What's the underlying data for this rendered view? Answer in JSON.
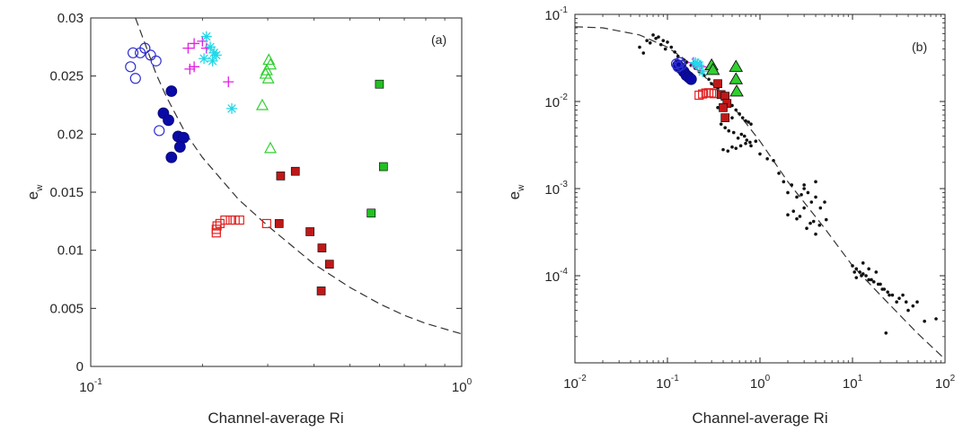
{
  "chart_data": [
    {
      "type": "scatter",
      "panel_label": "(a)",
      "xlabel": "Channel-average Ri",
      "ylabel": "e",
      "ylabel_sub": "w",
      "xscale": "log",
      "xlim": [
        0.1,
        1
      ],
      "ylim": [
        0,
        0.03
      ],
      "x_ticks": [
        {
          "base": "10",
          "exp": "-1"
        },
        {
          "base": "10",
          "exp": "0"
        }
      ],
      "y_ticks": [
        "0",
        "0.005",
        "0.01",
        "0.015",
        "0.02",
        "0.025",
        "0.03"
      ],
      "grid": false,
      "series": [
        {
          "marker": "circle-open",
          "color": "#2f2fd0",
          "x": [
            0.128,
            0.132,
            0.136,
            0.14,
            0.145,
            0.15,
            0.13
          ],
          "y": [
            0.0258,
            0.0248,
            0.027,
            0.0274,
            0.0268,
            0.0263,
            0.027
          ]
        },
        {
          "marker": "circle-open",
          "color": "#2f2fd0",
          "x": [
            0.153
          ],
          "y": [
            0.0203
          ]
        },
        {
          "marker": "circle-filled",
          "color": "#0a0aa8",
          "x": [
            0.165,
            0.157,
            0.162,
            0.172,
            0.178,
            0.174,
            0.165
          ],
          "y": [
            0.0237,
            0.0218,
            0.0212,
            0.0198,
            0.0197,
            0.0189,
            0.018
          ]
        },
        {
          "marker": "plus",
          "color": "#e020e0",
          "x": [
            0.183,
            0.19,
            0.2,
            0.205,
            0.185,
            0.19,
            0.235
          ],
          "y": [
            0.0274,
            0.0278,
            0.028,
            0.0274,
            0.0256,
            0.0258,
            0.0245
          ]
        },
        {
          "marker": "asterisk",
          "color": "#20d8e8",
          "x": [
            0.205,
            0.21,
            0.215,
            0.202,
            0.213,
            0.218,
            0.24
          ],
          "y": [
            0.0284,
            0.0275,
            0.027,
            0.0265,
            0.0263,
            0.0268,
            0.0222
          ]
        },
        {
          "marker": "triangle-open",
          "color": "#30d030",
          "x": [
            0.302,
            0.298,
            0.305,
            0.296,
            0.301,
            0.29,
            0.305
          ],
          "y": [
            0.0264,
            0.0255,
            0.026,
            0.0252,
            0.0248,
            0.0225,
            0.0188
          ]
        },
        {
          "marker": "square-open",
          "color": "#e02020",
          "x": [
            0.218,
            0.218,
            0.219,
            0.223,
            0.23,
            0.238,
            0.245,
            0.252,
            0.298
          ],
          "y": [
            0.0115,
            0.0118,
            0.0121,
            0.0123,
            0.0126,
            0.0126,
            0.0126,
            0.0126,
            0.0123
          ]
        },
        {
          "marker": "square-filled",
          "color": "#c01818",
          "x": [
            0.325,
            0.356,
            0.322,
            0.39,
            0.42,
            0.44,
            0.418
          ],
          "y": [
            0.0164,
            0.0168,
            0.0123,
            0.0116,
            0.0102,
            0.0088,
            0.0065
          ]
        },
        {
          "marker": "square-filled",
          "color": "#22c022",
          "x": [
            0.6,
            0.615,
            0.57
          ],
          "y": [
            0.0243,
            0.0172,
            0.0132
          ]
        },
        {
          "marker": "dashed-line",
          "color": "#333333",
          "x": [
            0.132,
            0.14,
            0.15,
            0.16,
            0.18,
            0.2,
            0.25,
            0.3,
            0.4,
            0.5,
            0.6,
            0.7,
            0.8,
            1.0
          ],
          "y": [
            0.03,
            0.0278,
            0.0252,
            0.0232,
            0.0201,
            0.018,
            0.0144,
            0.0121,
            0.0088,
            0.0068,
            0.0054,
            0.0044,
            0.0037,
            0.0028
          ]
        }
      ]
    },
    {
      "type": "scatter",
      "panel_label": "(b)",
      "xlabel": "Channel-average Ri",
      "ylabel": "e",
      "ylabel_sub": "w",
      "xscale": "log",
      "yscale": "log",
      "xlim": [
        0.01,
        100
      ],
      "ylim": [
        1e-05,
        0.1
      ],
      "x_ticks": [
        {
          "base": "10",
          "exp": "-2"
        },
        {
          "base": "10",
          "exp": "-1"
        },
        {
          "base": "10",
          "exp": "0"
        },
        {
          "base": "10",
          "exp": "1"
        },
        {
          "base": "10",
          "exp": "2"
        }
      ],
      "y_ticks": [
        {
          "base": "10",
          "exp": "-4"
        },
        {
          "base": "10",
          "exp": "-3"
        },
        {
          "base": "10",
          "exp": "-2"
        },
        {
          "base": "10",
          "exp": "-1"
        }
      ],
      "grid": false,
      "series": [
        {
          "marker": "dot",
          "color": "#111111",
          "x": [
            0.05,
            0.055,
            0.06,
            0.065,
            0.07,
            0.075,
            0.08,
            0.085,
            0.09,
            0.095,
            0.1,
            0.11,
            0.12,
            0.13,
            0.15,
            0.16,
            0.18,
            0.2,
            0.22,
            0.25,
            0.28,
            0.3,
            0.35,
            0.4,
            0.45,
            0.5,
            0.55,
            0.6,
            0.65,
            0.7,
            0.75,
            0.8,
            0.38,
            0.42,
            0.46,
            0.52,
            0.58,
            0.63,
            0.68,
            0.72,
            0.78,
            0.4,
            0.45,
            0.5,
            0.55,
            0.62,
            0.7,
            0.8,
            0.9,
            1.0,
            1.2,
            1.4,
            1.6,
            1.8,
            2.0,
            2.2,
            2.5,
            2.8,
            3.0,
            3.3,
            3.6,
            4.0,
            4.5,
            5.0,
            2.0,
            2.5,
            3.0,
            3.5,
            4.0,
            2.3,
            2.7,
            3.2,
            3.8,
            4.4,
            5.2,
            3.0,
            4.0,
            10,
            11,
            12,
            13,
            14,
            15,
            16,
            18,
            20,
            22,
            25,
            30,
            35,
            40,
            50,
            60,
            11,
            13,
            15,
            17,
            19,
            21,
            24,
            27,
            32,
            38,
            45,
            10.5,
            12.5,
            23,
            80,
            0.35,
            0.5
          ],
          "y": [
            0.042,
            0.036,
            0.05,
            0.047,
            0.058,
            0.053,
            0.055,
            0.045,
            0.05,
            0.04,
            0.048,
            0.042,
            0.037,
            0.033,
            0.03,
            0.028,
            0.026,
            0.024,
            0.022,
            0.02,
            0.018,
            0.016,
            0.014,
            0.012,
            0.0105,
            0.009,
            0.008,
            0.0072,
            0.0065,
            0.006,
            0.0058,
            0.0055,
            0.0055,
            0.005,
            0.0046,
            0.0044,
            0.0038,
            0.0042,
            0.004,
            0.0036,
            0.0034,
            0.0028,
            0.0027,
            0.003,
            0.0029,
            0.0031,
            0.0033,
            0.0031,
            0.0035,
            0.0025,
            0.0022,
            0.0021,
            0.0015,
            0.0012,
            0.0009,
            0.0011,
            0.0008,
            0.00085,
            0.001,
            0.0009,
            0.0007,
            0.0008,
            0.0006,
            0.0007,
            0.0005,
            0.00045,
            0.0006,
            0.0004,
            0.0003,
            0.00055,
            0.00048,
            0.00035,
            0.00042,
            0.00038,
            0.00044,
            0.0011,
            0.0012,
            0.00013,
            0.00012,
            0.00011,
            0.00014,
            0.0001,
            0.00012,
            9e-05,
            0.00011,
            8e-05,
            7e-05,
            6e-05,
            5e-05,
            6e-05,
            4e-05,
            5e-05,
            3e-05,
            9.5e-05,
            0.000105,
            9e-05,
            8.5e-05,
            8e-05,
            7e-05,
            6.5e-05,
            6e-05,
            5.5e-05,
            5e-05,
            4.5e-05,
            0.00011,
            0.0001,
            2.2e-05,
            3.2e-05,
            0.0085,
            0.0065
          ]
        },
        {
          "marker": "circle-filled",
          "color": "#0a0aa8",
          "x": [
            0.13,
            0.14,
            0.15,
            0.16,
            0.17,
            0.18
          ],
          "y": [
            0.026,
            0.024,
            0.022,
            0.02,
            0.019,
            0.018
          ]
        },
        {
          "marker": "circle-open",
          "color": "#2f2fd0",
          "x": [
            0.125,
            0.13,
            0.135,
            0.14
          ],
          "y": [
            0.027,
            0.025,
            0.028,
            0.026
          ]
        },
        {
          "marker": "plus",
          "color": "#e020e0",
          "x": [
            0.19,
            0.2,
            0.21,
            0.23
          ],
          "y": [
            0.028,
            0.027,
            0.026,
            0.025
          ]
        },
        {
          "marker": "asterisk",
          "color": "#20d8e8",
          "x": [
            0.2,
            0.21,
            0.22,
            0.24
          ],
          "y": [
            0.028,
            0.027,
            0.026,
            0.022
          ]
        },
        {
          "marker": "triangle-filled",
          "color": "#30d030",
          "x": [
            0.3,
            0.31,
            0.55,
            0.55,
            0.56
          ],
          "y": [
            0.026,
            0.023,
            0.025,
            0.018,
            0.013
          ]
        },
        {
          "marker": "square-open",
          "color": "#e02020",
          "x": [
            0.22,
            0.24,
            0.26,
            0.28,
            0.3,
            0.32
          ],
          "y": [
            0.0118,
            0.0122,
            0.0125,
            0.0126,
            0.0125,
            0.0123
          ]
        },
        {
          "marker": "square-filled",
          "color": "#c01818",
          "x": [
            0.35,
            0.38,
            0.42,
            0.44,
            0.4,
            0.42
          ],
          "y": [
            0.016,
            0.012,
            0.0115,
            0.0095,
            0.0085,
            0.0065
          ]
        },
        {
          "marker": "dashed-line",
          "color": "#333333",
          "x": [
            0.01,
            0.02,
            0.05,
            0.1,
            0.2,
            0.5,
            1,
            2,
            5,
            10,
            20,
            50,
            100
          ],
          "y": [
            0.072,
            0.07,
            0.058,
            0.042,
            0.025,
            0.009,
            0.0035,
            0.0012,
            0.00035,
            0.00013,
            6e-05,
            2.2e-05,
            1.1e-05
          ]
        }
      ]
    }
  ]
}
